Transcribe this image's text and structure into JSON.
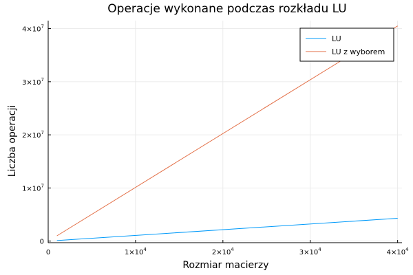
{
  "chart_data": {
    "type": "line",
    "title": "Operacje wykonane podczas rozkładu LU",
    "xlabel": "Rozmiar macierzy",
    "ylabel": "Liczba operacji",
    "xlim": [
      0,
      40500
    ],
    "ylim": [
      -300000,
      41500000
    ],
    "x_ticks": [
      {
        "value": 0,
        "base": "0",
        "exp": ""
      },
      {
        "value": 10000,
        "base": "1×10",
        "exp": "4"
      },
      {
        "value": 20000,
        "base": "2×10",
        "exp": "4"
      },
      {
        "value": 30000,
        "base": "3×10",
        "exp": "4"
      },
      {
        "value": 40000,
        "base": "4×10",
        "exp": "4"
      }
    ],
    "y_ticks": [
      {
        "value": 0,
        "base": "0",
        "exp": ""
      },
      {
        "value": 10000000,
        "base": "1×10",
        "exp": "7"
      },
      {
        "value": 20000000,
        "base": "2×10",
        "exp": "7"
      },
      {
        "value": 30000000,
        "base": "3×10",
        "exp": "7"
      },
      {
        "value": 40000000,
        "base": "4×10",
        "exp": "7"
      }
    ],
    "grid": true,
    "legend_position": "top-right",
    "series": [
      {
        "name": "LU",
        "color": "#009AFA",
        "x": [
          1000,
          40000
        ],
        "y": [
          100000,
          4300000
        ]
      },
      {
        "name": "LU z wyborem",
        "color": "#E36F47",
        "x": [
          1000,
          40000
        ],
        "y": [
          1000000,
          40500000
        ]
      }
    ]
  }
}
